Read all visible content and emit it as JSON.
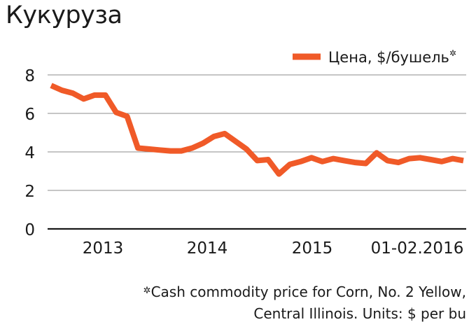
{
  "chart_data": {
    "type": "line",
    "title": "Кукуруза",
    "x_tick_labels": [
      "2013",
      "2014",
      "2015",
      "01-02.2016"
    ],
    "y_ticks": [
      0,
      2,
      4,
      6,
      8
    ],
    "ylim": [
      0,
      8.4
    ],
    "grid": true,
    "legend_position": "top-right",
    "series": [
      {
        "name": "Цена, $/бушель",
        "color": "#f05a28",
        "values": [
          7.45,
          7.2,
          7.05,
          6.75,
          6.95,
          6.95,
          6.05,
          5.85,
          4.2,
          4.15,
          4.1,
          4.05,
          4.05,
          4.2,
          4.45,
          4.8,
          4.95,
          4.55,
          4.15,
          3.55,
          3.6,
          2.85,
          3.35,
          3.5,
          3.7,
          3.5,
          3.65,
          3.55,
          3.45,
          3.4,
          3.95,
          3.55,
          3.45,
          3.65,
          3.7,
          3.6,
          3.5,
          3.65,
          3.55
        ]
      }
    ],
    "legend_marker": "✲",
    "footnote": {
      "marker": "✲",
      "line1": "Cash commodity price for Corn, No. 2 Yellow,",
      "line2": "Central Illinois. Units: $ per bu"
    }
  }
}
